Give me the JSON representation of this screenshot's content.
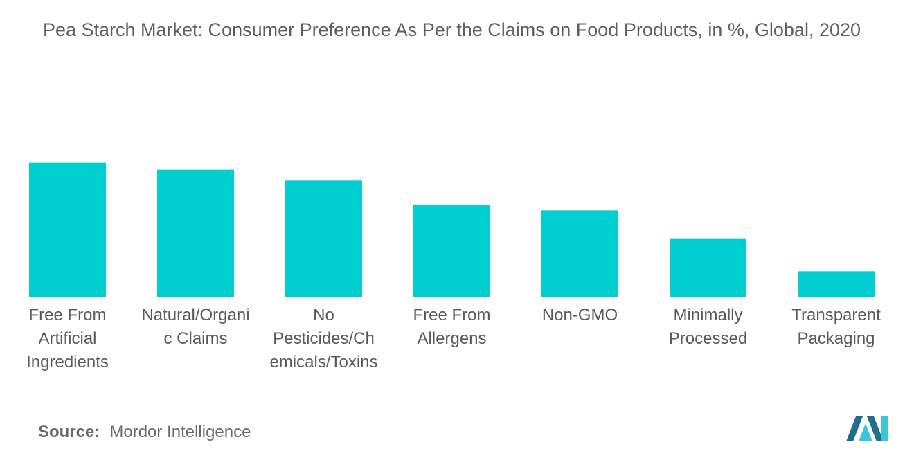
{
  "title": "Pea Starch Market: Consumer Preference As Per the Claims on Food Products, in %, Global, 2020",
  "source": {
    "label": "Source:",
    "text": "Mordor Intelligence"
  },
  "colors": {
    "bar": "#00CED1",
    "text": "#5a5a5a",
    "logo_dark": "#1f6f8b",
    "logo_light": "#3ec6d6"
  },
  "chart_data": {
    "type": "bar",
    "title": "Pea Starch Market: Consumer Preference As Per the Claims on Food Products, in %, Global, 2020",
    "xlabel": "",
    "ylabel": "",
    "grid": false,
    "ylim": [
      0,
      60
    ],
    "categories": [
      "Free From Artificial Ingredients",
      "Natural/Organic Claims",
      "No Pesticides/Chemicals/Toxins",
      "Free From Allergens",
      "Non-GMO",
      "Minimally Processed",
      "Transparent Packaging"
    ],
    "category_label_lines": [
      [
        "Free From",
        "Artificial",
        "Ingredients"
      ],
      [
        "Natural/Organi",
        "c Claims"
      ],
      [
        "No",
        "Pesticides/Ch",
        "emicals/Toxins"
      ],
      [
        "Free From",
        "Allergens"
      ],
      [
        "Non-GMO"
      ],
      [
        "Minimally",
        "Processed"
      ],
      [
        "Transparent",
        "Packaging"
      ]
    ],
    "values": [
      53,
      50,
      46,
      36,
      34,
      23,
      10
    ]
  }
}
